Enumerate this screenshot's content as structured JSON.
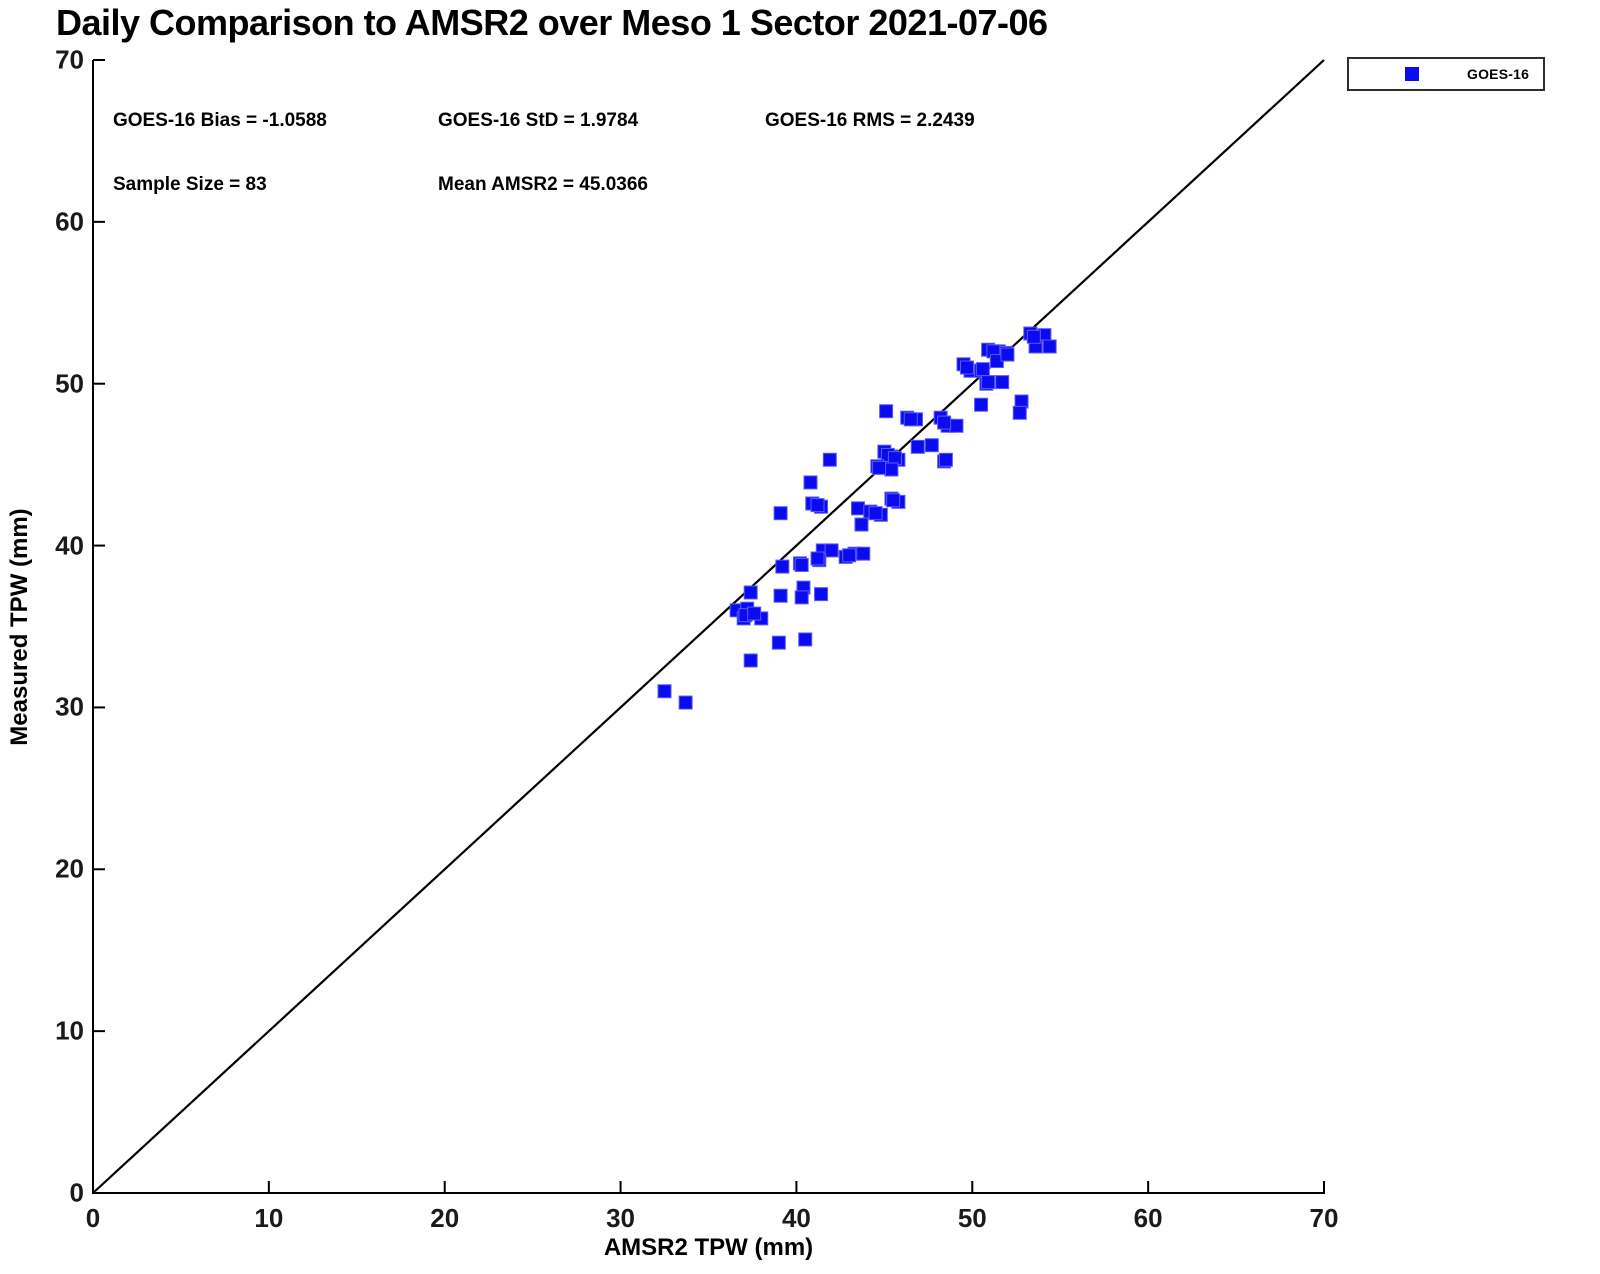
{
  "title": "Daily Comparison to AMSR2 over Meso 1 Sector 2021-07-06",
  "stats": {
    "bias": "GOES-16 Bias = -1.0588",
    "std": "GOES-16 StD = 1.9784",
    "rms": "GOES-16 RMS = 2.2439",
    "sample_size": "Sample Size = 83",
    "mean": "Mean AMSR2 = 45.0366"
  },
  "legend": {
    "label": "GOES-16",
    "marker_color": "#0b0bf0"
  },
  "chart_data": {
    "type": "scatter",
    "title": "Daily Comparison to AMSR2 over Meso 1 Sector 2021-07-06",
    "xlabel": "AMSR2 TPW (mm)",
    "ylabel": "Measured TPW (mm)",
    "xlim": [
      0,
      70
    ],
    "ylim": [
      0,
      70
    ],
    "xticks": [
      0,
      10,
      20,
      30,
      40,
      50,
      60,
      70
    ],
    "yticks": [
      0,
      10,
      20,
      30,
      40,
      50,
      60,
      70
    ],
    "grid": false,
    "legend_position": "outside-top-right",
    "reference_line": {
      "type": "identity",
      "from": [
        0,
        0
      ],
      "to": [
        70,
        70
      ],
      "color": "#000000"
    },
    "stats": {
      "bias": -1.0588,
      "std": 1.9784,
      "rms": 2.2439,
      "sample_size": 83,
      "mean_amsr2": 45.0366
    },
    "series": [
      {
        "name": "GOES-16",
        "marker": "square",
        "color": "#0b0bf0",
        "points": [
          [
            53.3,
            53.1
          ],
          [
            54.1,
            53.0
          ],
          [
            53.6,
            52.3
          ],
          [
            54.4,
            52.3
          ],
          [
            53.5,
            52.9
          ],
          [
            50.9,
            52.1
          ],
          [
            51.5,
            52.0
          ],
          [
            51.9,
            51.9
          ],
          [
            51.2,
            52.0
          ],
          [
            51.4,
            51.4
          ],
          [
            49.5,
            51.2
          ],
          [
            49.9,
            50.8
          ],
          [
            50.5,
            50.8
          ],
          [
            49.7,
            51.0
          ],
          [
            50.6,
            50.9
          ],
          [
            50.8,
            50.0
          ],
          [
            51.7,
            50.1
          ],
          [
            50.9,
            50.1
          ],
          [
            52.0,
            51.8
          ],
          [
            50.5,
            48.7
          ],
          [
            52.8,
            48.9
          ],
          [
            52.7,
            48.2
          ],
          [
            48.2,
            47.9
          ],
          [
            48.6,
            47.4
          ],
          [
            49.1,
            47.4
          ],
          [
            48.4,
            47.6
          ],
          [
            45.1,
            48.3
          ],
          [
            46.3,
            47.9
          ],
          [
            46.8,
            47.8
          ],
          [
            46.5,
            47.8
          ],
          [
            47.7,
            46.2
          ],
          [
            46.9,
            46.1
          ],
          [
            48.4,
            45.2
          ],
          [
            48.5,
            45.3
          ],
          [
            41.9,
            45.3
          ],
          [
            45.0,
            45.8
          ],
          [
            45.4,
            45.5
          ],
          [
            45.8,
            45.3
          ],
          [
            45.2,
            45.6
          ],
          [
            45.6,
            45.4
          ],
          [
            44.6,
            44.9
          ],
          [
            45.4,
            44.7
          ],
          [
            44.7,
            44.8
          ],
          [
            45.4,
            42.9
          ],
          [
            45.8,
            42.7
          ],
          [
            45.5,
            42.8
          ],
          [
            43.5,
            42.3
          ],
          [
            44.2,
            42.1
          ],
          [
            44.8,
            41.9
          ],
          [
            44.5,
            42.0
          ],
          [
            40.8,
            43.9
          ],
          [
            40.9,
            42.6
          ],
          [
            41.4,
            42.4
          ],
          [
            41.2,
            42.5
          ],
          [
            39.1,
            42.0
          ],
          [
            43.7,
            41.3
          ],
          [
            41.5,
            39.7
          ],
          [
            42.0,
            39.7
          ],
          [
            41.3,
            39.1
          ],
          [
            42.8,
            39.3
          ],
          [
            43.3,
            39.5
          ],
          [
            43.8,
            39.5
          ],
          [
            41.2,
            39.2
          ],
          [
            43.0,
            39.4
          ],
          [
            40.2,
            38.9
          ],
          [
            39.2,
            38.7
          ],
          [
            40.3,
            38.8
          ],
          [
            37.4,
            37.1
          ],
          [
            39.1,
            36.9
          ],
          [
            40.4,
            37.4
          ],
          [
            40.3,
            36.8
          ],
          [
            41.4,
            37.0
          ],
          [
            36.6,
            36.0
          ],
          [
            37.2,
            36.1
          ],
          [
            37.0,
            35.5
          ],
          [
            38.0,
            35.5
          ],
          [
            37.1,
            35.7
          ],
          [
            37.6,
            35.8
          ],
          [
            39.0,
            34.0
          ],
          [
            40.5,
            34.2
          ],
          [
            37.4,
            32.9
          ],
          [
            32.5,
            31.0
          ],
          [
            33.7,
            30.3
          ]
        ]
      }
    ]
  }
}
